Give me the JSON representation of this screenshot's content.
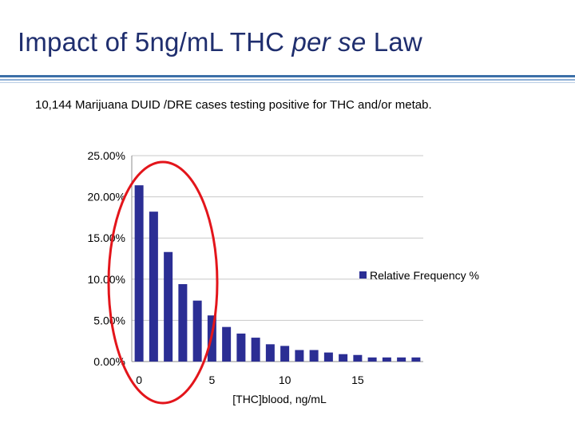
{
  "slide": {
    "title_prefix": "Impact of 5ng/mL THC ",
    "title_italic": "per se",
    "title_suffix": " Law",
    "subtitle": "10,144 Marijuana DUID /DRE cases testing positive for THC and/or metab."
  },
  "colors": {
    "title": "#1f2e6e",
    "bar": "#2b2e94",
    "ellipse": "#e3151b",
    "rule": "#3c6fa8"
  },
  "chart_data": {
    "type": "bar",
    "x": [
      0,
      1,
      2,
      3,
      4,
      5,
      6,
      7,
      8,
      9,
      10,
      11,
      12,
      13,
      14,
      15,
      16,
      17,
      18,
      19
    ],
    "series": [
      {
        "name": "Relative Frequency %",
        "values": [
          21.4,
          18.2,
          13.3,
          9.4,
          7.4,
          5.6,
          4.2,
          3.4,
          2.9,
          2.1,
          1.9,
          1.4,
          1.4,
          1.1,
          0.9,
          0.8,
          0.5,
          0.5,
          0.5,
          0.5
        ]
      }
    ],
    "xlabel": "[THC]blood, ng/mL",
    "ylabel": "",
    "ylim": [
      0,
      25
    ],
    "yticks": [
      "0.00%",
      "5.00%",
      "10.00%",
      "15.00%",
      "20.00%",
      "25.00%"
    ],
    "xticks": [
      "0",
      "5",
      "10",
      "15"
    ],
    "grid": true,
    "legend": "right",
    "annotation": "red ellipse around bins 0–5"
  }
}
